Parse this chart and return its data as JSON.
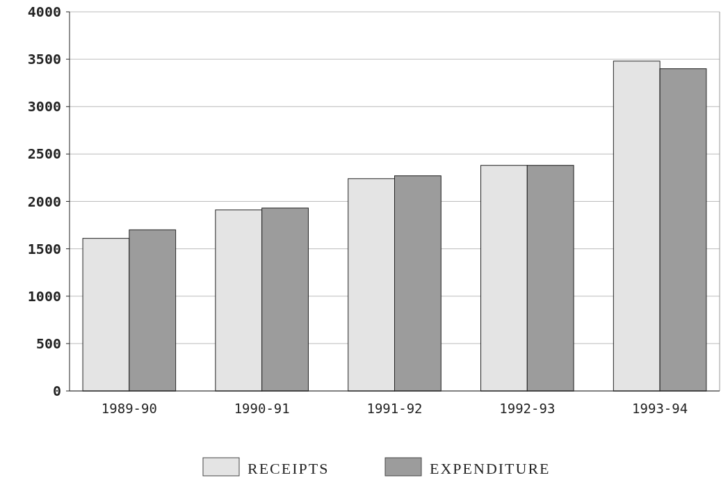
{
  "chart_data": {
    "type": "bar",
    "categories": [
      "1989-90",
      "1990-91",
      "1991-92",
      "1992-93",
      "1993-94"
    ],
    "series": [
      {
        "name": "RECEIPTS",
        "color": "#e4e4e4",
        "values": [
          1610,
          1910,
          2240,
          2380,
          3480
        ]
      },
      {
        "name": "EXPENDITURE",
        "color": "#9c9c9c",
        "values": [
          1700,
          1930,
          2270,
          2380,
          3400
        ]
      }
    ],
    "ylim": [
      0,
      4000
    ],
    "yticks": [
      0,
      500,
      1000,
      1500,
      2000,
      2500,
      3000,
      3500,
      4000
    ],
    "grid": "y",
    "legend": "bottom"
  }
}
